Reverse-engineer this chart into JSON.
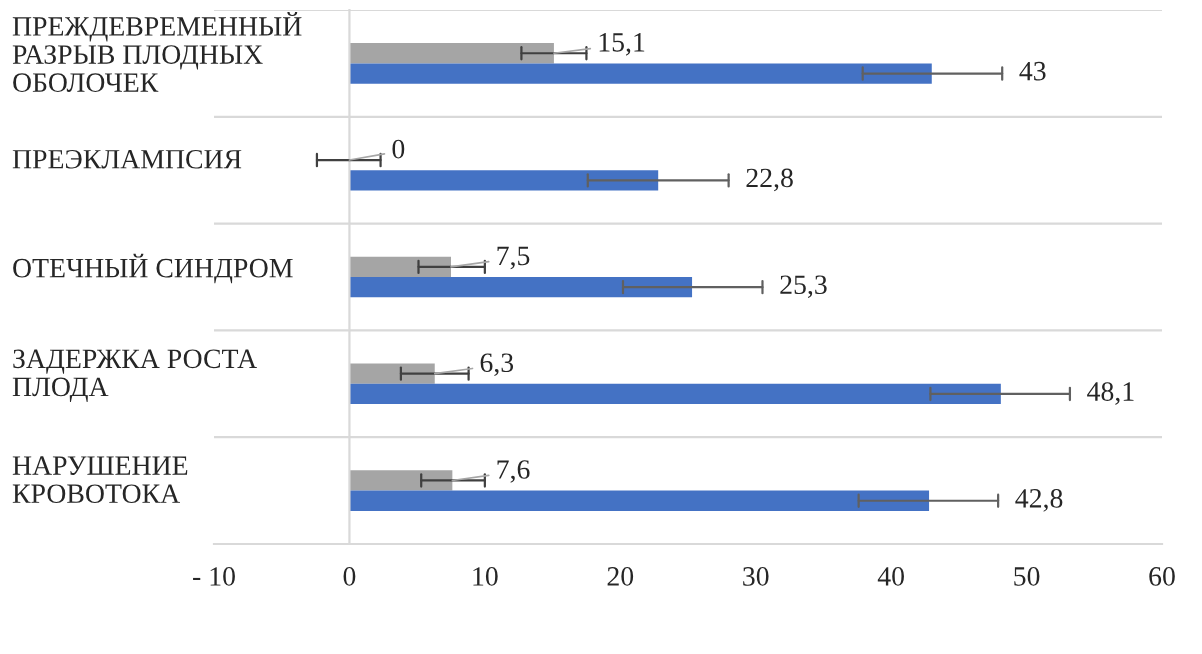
{
  "chart_data": {
    "type": "bar",
    "orientation": "horizontal",
    "categories": [
      "ПРЕЖДЕВРЕМЕННЫЙ\nРАЗРЫВ ПЛОДНЫХ\nОБОЛОЧЕК",
      "ПРЕЭКЛАМПСИЯ",
      "ОТЕЧНЫЙ СИНДРОМ",
      "ЗАДЕРЖКА РОСТА\nПЛОДА",
      "НАРУШЕНИЕ\nКРОВОТОКА"
    ],
    "series": [
      {
        "color": "#a5a5a5",
        "values": [
          15.1,
          0,
          7.5,
          6.3,
          7.6
        ],
        "value_labels": [
          "15,1",
          "0",
          "7,5",
          "6,3",
          "7,6"
        ],
        "errors": [
          [
            12.7,
            17.5
          ],
          [
            -2.4,
            2.3
          ],
          [
            5.1,
            10.0
          ],
          [
            3.8,
            8.8
          ],
          [
            5.3,
            10.0
          ]
        ]
      },
      {
        "color": "#4472c4",
        "values": [
          43,
          22.8,
          25.3,
          48.1,
          42.8
        ],
        "value_labels": [
          "43",
          "22,8",
          "25,3",
          "48,1",
          "42,8"
        ],
        "errors": [
          [
            37.9,
            48.2
          ],
          [
            17.6,
            28.0
          ],
          [
            20.2,
            30.5
          ],
          [
            42.9,
            53.2
          ],
          [
            37.6,
            47.9
          ]
        ]
      }
    ],
    "xlim": [
      -10,
      60
    ],
    "xticks": [
      {
        "value": -10,
        "label": "- 10"
      },
      0,
      10,
      20,
      30,
      40,
      50,
      60
    ],
    "grid": "y",
    "legend": false
  }
}
